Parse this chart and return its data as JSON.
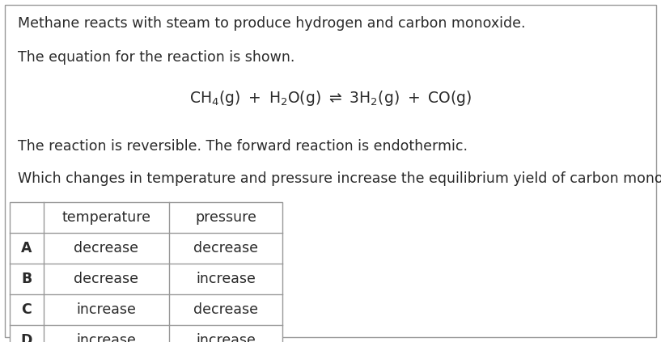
{
  "line1": "Methane reacts with steam to produce hydrogen and carbon monoxide.",
  "line2": "The equation for the reaction is shown.",
  "line3": "The reaction is reversible. The forward reaction is endothermic.",
  "line4": "Which changes in temperature and pressure increase the equilibrium yield of carbon monoxide?",
  "table_headers": [
    "",
    "temperature",
    "pressure"
  ],
  "table_rows": [
    [
      "A",
      "decrease",
      "decrease"
    ],
    [
      "B",
      "decrease",
      "increase"
    ],
    [
      "C",
      "increase",
      "decrease"
    ],
    [
      "D",
      "increase",
      "increase"
    ]
  ],
  "bg_color": "#ffffff",
  "text_color": "#2a2a2a",
  "border_color": "#999999",
  "font_size_text": 12.5,
  "font_size_equation": 13.5,
  "font_size_table": 12.5,
  "fig_width": 8.17,
  "fig_height": 4.23,
  "dpi": 100
}
